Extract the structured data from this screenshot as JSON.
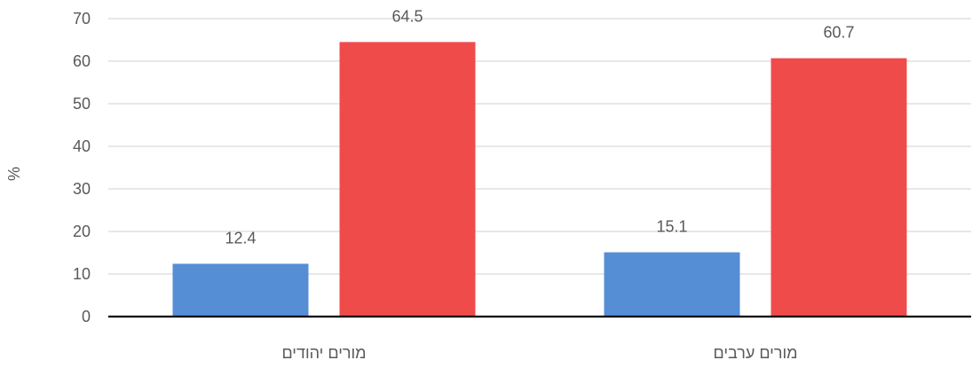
{
  "chart_data": {
    "type": "bar",
    "categories": [
      "מורים יהודים",
      "מורים ערבים"
    ],
    "series": [
      {
        "values": [
          12.4,
          15.1
        ],
        "color": "#558ed5"
      },
      {
        "values": [
          64.5,
          60.7
        ],
        "color": "#f04b4b"
      }
    ],
    "data_labels": [
      [
        "12.4",
        "15.1"
      ],
      [
        "64.5",
        "60.7"
      ]
    ],
    "ylabel": "%",
    "ylim": [
      0,
      70
    ],
    "yticks": [
      0,
      10,
      20,
      30,
      40,
      50,
      60,
      70
    ],
    "ytick_labels": [
      "0",
      "10",
      "20",
      "30",
      "40",
      "50",
      "60",
      "70"
    ],
    "grid": true,
    "gridline_color": "#d9d9d9",
    "axis_line_color": "#000000"
  }
}
